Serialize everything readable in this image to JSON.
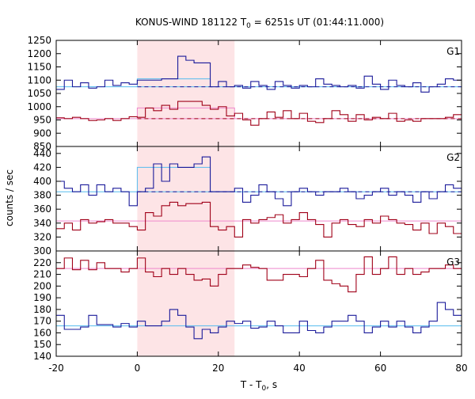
{
  "title": "KONUS-WIND 181122 T",
  "title_sub": "0",
  "title_rest": " = 6251s UT (01:44:11.000)",
  "xlabel": "T - T",
  "xlabel_sub": "0",
  "xlabel_rest": ", s",
  "ylabel": "counts / sec",
  "chart_data": {
    "type": "line",
    "style": "step histogram, stacked panels",
    "x_range": [
      -20,
      80
    ],
    "x_ticks": [
      -20,
      0,
      20,
      40,
      60,
      80
    ],
    "shaded_interval": [
      0,
      24
    ],
    "colors": {
      "blue": "#1a1a9a",
      "red": "#a00018",
      "blue_fit": "#55bbee",
      "red_fit": "#ee88cc",
      "shade": "#fde4e6"
    },
    "x_edges": [
      -20,
      -18,
      -16,
      -14,
      -12,
      -10,
      -8,
      -6,
      -4,
      -2,
      0,
      2,
      4,
      6,
      8,
      10,
      12,
      14,
      16,
      18,
      20,
      22,
      24,
      26,
      28,
      30,
      32,
      34,
      36,
      38,
      40,
      42,
      44,
      46,
      48,
      50,
      52,
      54,
      56,
      58,
      60,
      62,
      64,
      66,
      68,
      70,
      72,
      74,
      76,
      78,
      80
    ],
    "panels": [
      {
        "name": "G1",
        "ylim": [
          850,
          1250
        ],
        "y_ticks": [
          850,
          900,
          950,
          1000,
          1050,
          1100,
          1150,
          1200,
          1250
        ],
        "background": [
          {
            "color": "blue",
            "level": 1075
          },
          {
            "color": "red",
            "level": 955
          }
        ],
        "source_fits": [
          {
            "color": "blue",
            "x": [
              0,
              18
            ],
            "level": 1075,
            "top": 1105,
            "peak": 1175
          },
          {
            "color": "red",
            "x": [
              0,
              24
            ],
            "level": 955,
            "top": 995
          }
        ],
        "series": [
          {
            "color": "blue",
            "values": [
              1065,
              1100,
              1075,
              1090,
              1070,
              1075,
              1100,
              1080,
              1090,
              1085,
              1100,
              1100,
              1100,
              1105,
              1105,
              1190,
              1175,
              1165,
              1165,
              1075,
              1095,
              1075,
              1080,
              1070,
              1095,
              1080,
              1065,
              1095,
              1080,
              1070,
              1080,
              1075,
              1105,
              1085,
              1080,
              1075,
              1080,
              1070,
              1115,
              1085,
              1065,
              1100,
              1080,
              1075,
              1090,
              1055,
              1075,
              1085,
              1105,
              1100
            ]
          },
          {
            "color": "red",
            "values": [
              958,
              955,
              960,
              955,
              948,
              950,
              955,
              948,
              955,
              962,
              960,
              995,
              985,
              1005,
              990,
              1020,
              1020,
              1020,
              1005,
              990,
              1000,
              965,
              975,
              950,
              930,
              955,
              980,
              960,
              985,
              955,
              975,
              945,
              940,
              955,
              985,
              970,
              945,
              970,
              950,
              960,
              955,
              975,
              945,
              950,
              945,
              955,
              955,
              955,
              960,
              970
            ]
          }
        ]
      },
      {
        "name": "G2",
        "ylim": [
          300,
          450
        ],
        "y_ticks": [
          300,
          320,
          340,
          360,
          380,
          400,
          420,
          440
        ],
        "background": [
          {
            "color": "blue",
            "level": 385
          },
          {
            "color": "red",
            "level": 343
          }
        ],
        "source_fits": [
          {
            "color": "blue",
            "x": [
              0,
              18
            ],
            "level": 385,
            "top": 420
          }
        ],
        "series": [
          {
            "color": "blue",
            "values": [
              400,
              390,
              385,
              395,
              380,
              395,
              385,
              390,
              385,
              365,
              385,
              390,
              425,
              400,
              425,
              420,
              420,
              425,
              435,
              385,
              385,
              385,
              390,
              370,
              380,
              395,
              385,
              375,
              365,
              385,
              390,
              385,
              380,
              385,
              385,
              390,
              385,
              375,
              380,
              385,
              390,
              380,
              385,
              380,
              370,
              385,
              375,
              385,
              395,
              390
            ]
          },
          {
            "color": "red",
            "values": [
              332,
              340,
              330,
              345,
              340,
              342,
              345,
              340,
              340,
              335,
              330,
              355,
              350,
              365,
              370,
              365,
              368,
              368,
              370,
              335,
              330,
              335,
              320,
              345,
              340,
              345,
              348,
              352,
              340,
              345,
              355,
              345,
              338,
              320,
              340,
              345,
              338,
              335,
              345,
              340,
              350,
              345,
              340,
              338,
              330,
              340,
              325,
              340,
              335,
              325
            ]
          }
        ]
      },
      {
        "name": "G3",
        "ylim": [
          140,
          230
        ],
        "y_ticks": [
          140,
          150,
          160,
          170,
          180,
          190,
          200,
          210,
          220
        ],
        "background": [
          {
            "color": "blue",
            "level": 166
          },
          {
            "color": "red",
            "level": 215
          }
        ],
        "source_fits": [],
        "series": [
          {
            "color": "blue",
            "values": [
              175,
              163,
              163,
              165,
              175,
              167,
              167,
              165,
              168,
              165,
              170,
              166,
              166,
              170,
              180,
              175,
              165,
              155,
              163,
              160,
              165,
              170,
              168,
              170,
              164,
              165,
              170,
              166,
              160,
              160,
              170,
              162,
              160,
              165,
              170,
              170,
              175,
              170,
              160,
              165,
              170,
              165,
              170,
              165,
              160,
              165,
              170,
              186,
              180,
              175
            ]
          },
          {
            "color": "red",
            "values": [
              215,
              224,
              214,
              222,
              214,
              220,
              215,
              215,
              212,
              215,
              224,
              212,
              208,
              215,
              210,
              215,
              210,
              205,
              206,
              200,
              210,
              215,
              215,
              218,
              216,
              215,
              205,
              205,
              210,
              210,
              208,
              215,
              222,
              205,
              202,
              200,
              195,
              210,
              225,
              210,
              215,
              225,
              210,
              215,
              210,
              212,
              215,
              215,
              218,
              215
            ]
          }
        ]
      }
    ]
  }
}
